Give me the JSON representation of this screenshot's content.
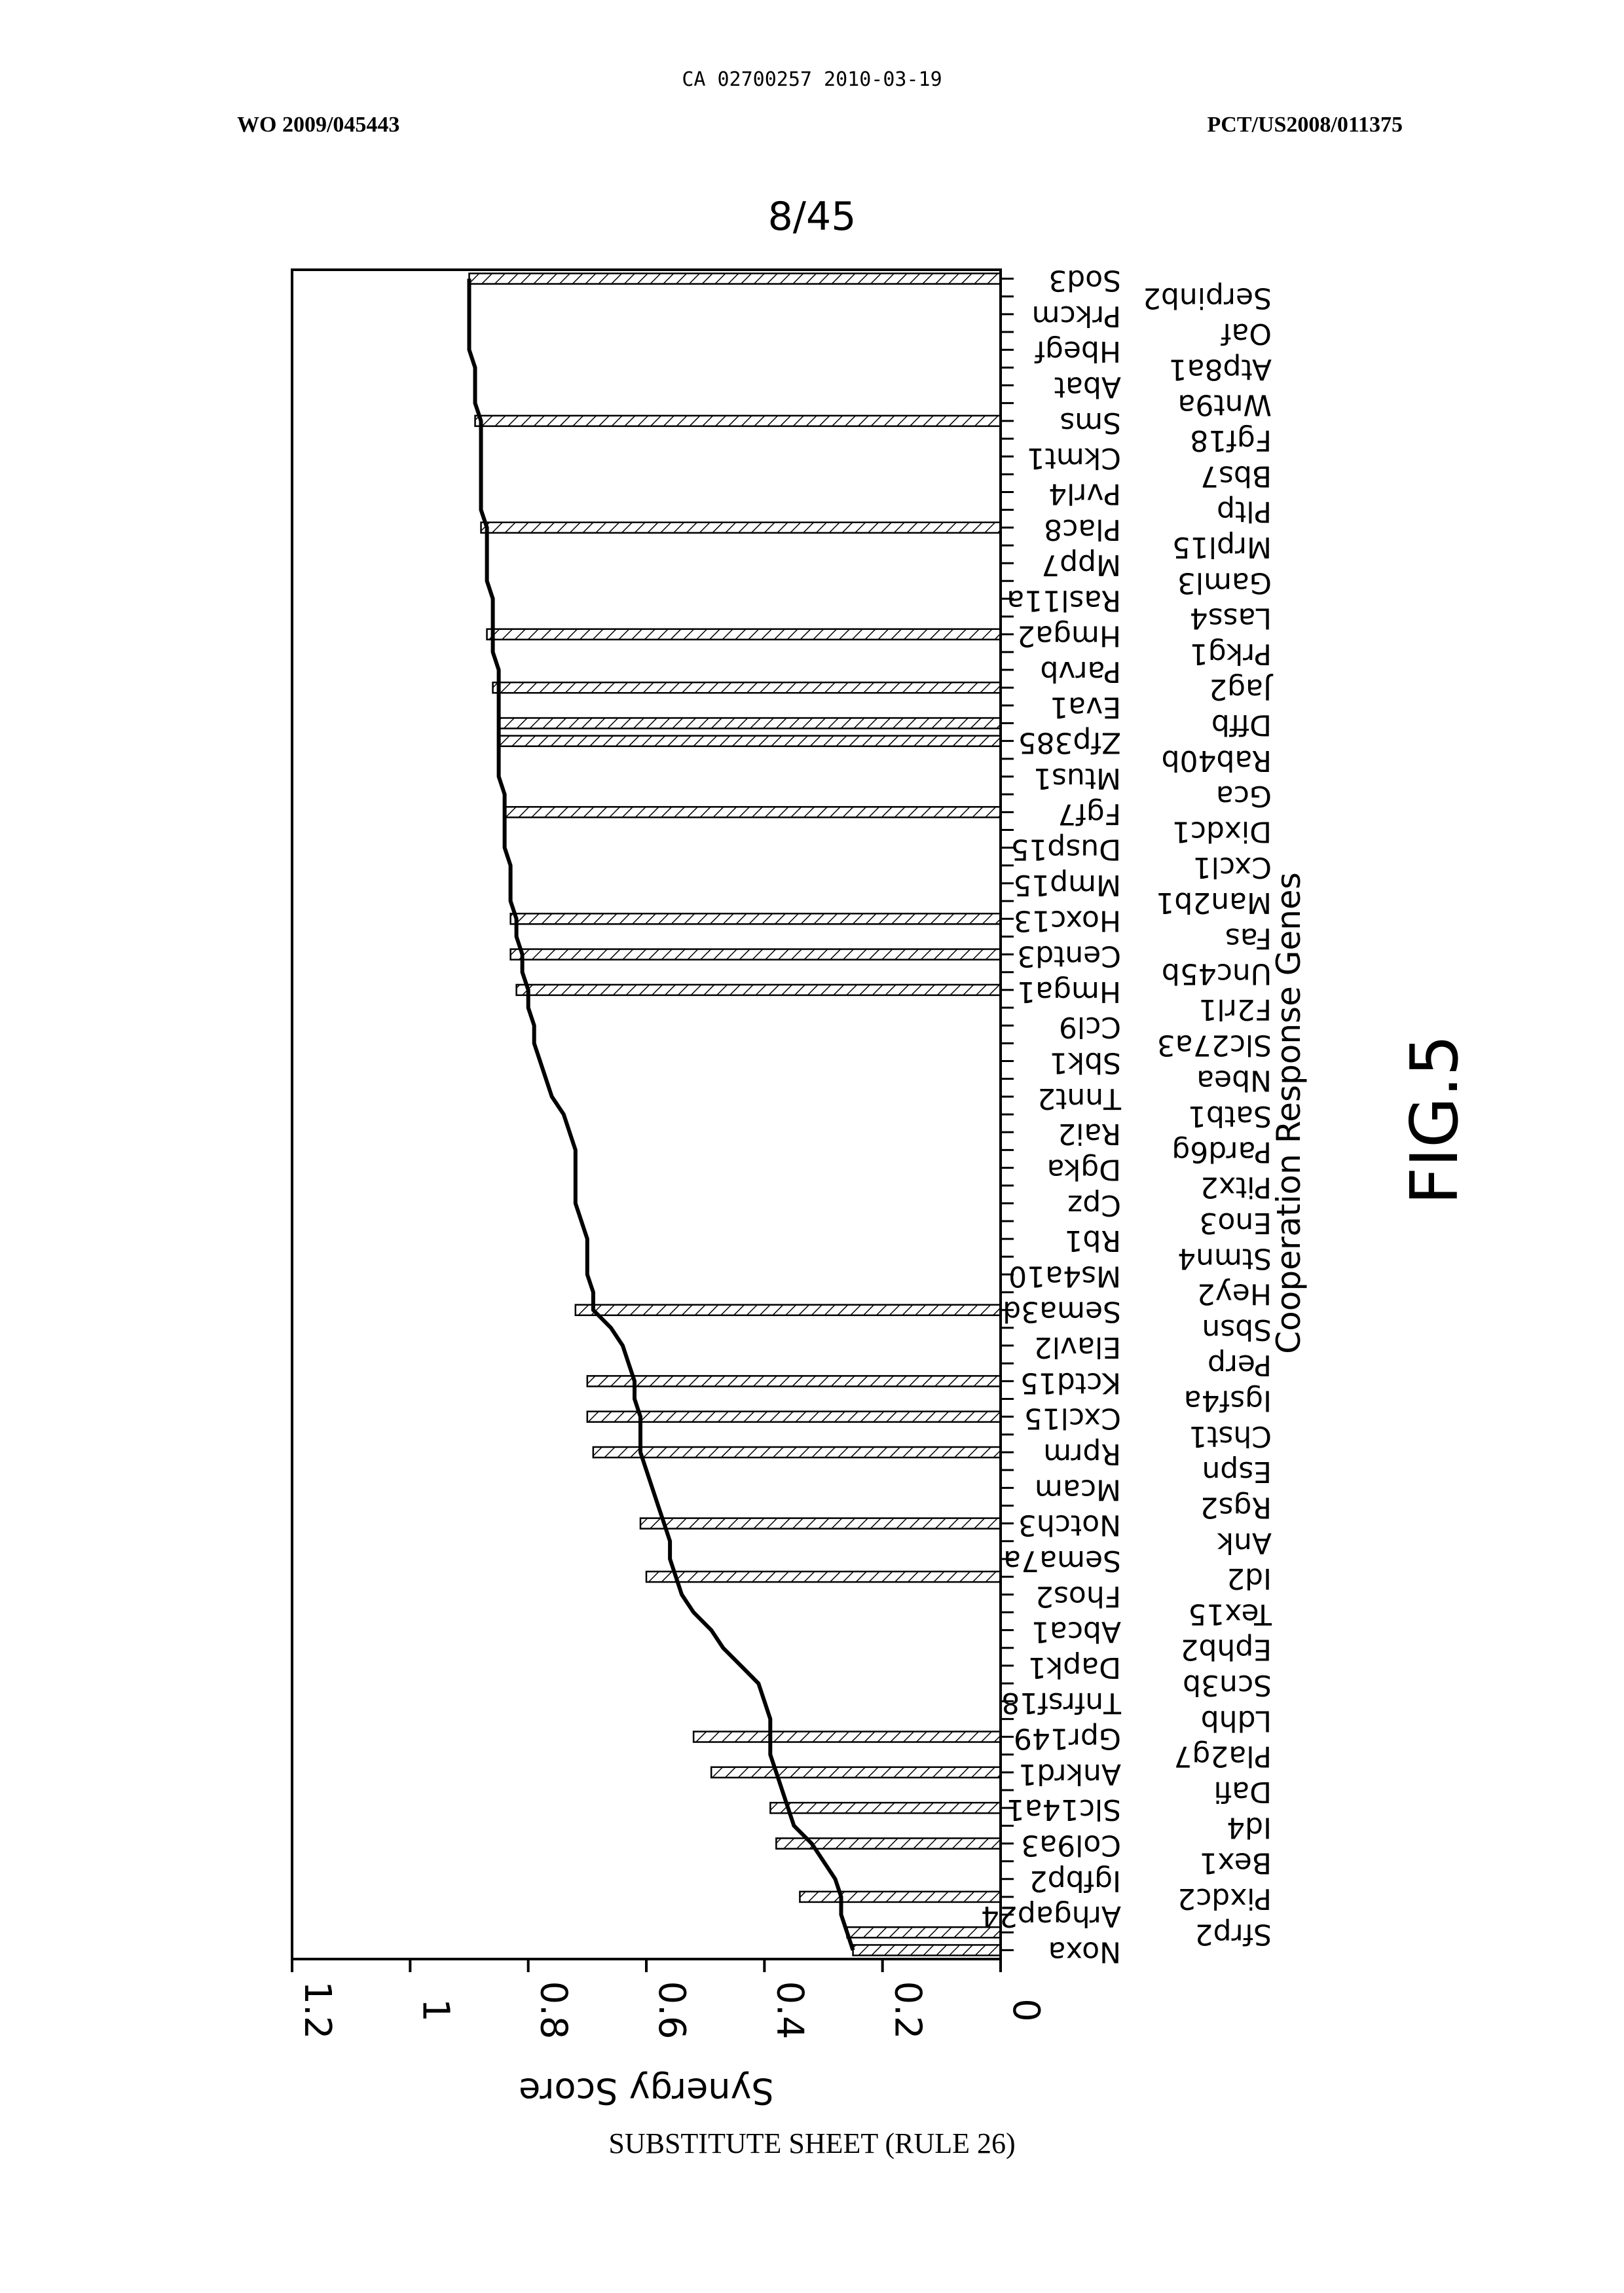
{
  "header": {
    "left": "WO 2009/045443",
    "center": "CA 02700257 2010-03-19",
    "right": "PCT/US2008/011375"
  },
  "sheet_number": "8/45",
  "figure_label": "FIG.5",
  "footer": "SUBSTITUTE SHEET (RULE 26)",
  "chart_data": {
    "type": "line",
    "xlabel": "Cooperation Response Genes",
    "ylabel": "Synergy Score",
    "ylim": [
      0,
      1.2
    ],
    "yticks": [
      0,
      0.2,
      0.4,
      0.6,
      0.8,
      1,
      1.2
    ],
    "orientation": "rotated 90 degrees clockwise; score axis horizontal increasing right-to-left",
    "categories": [
      "Noxa",
      "Sfrp2",
      "Arhgap24",
      "Pixdc2",
      "Igfbp2",
      "Bex1",
      "Col9a3",
      "Id4",
      "Slc14a1",
      "Dafi",
      "Ankrd1",
      "Pla2g7",
      "Gpr149",
      "Ldhb",
      "Tnfrsf18",
      "Scn3b",
      "Dapk1",
      "Ephb2",
      "Abca1",
      "Tex15",
      "Fhos2",
      "Id2",
      "Sema7a",
      "Ank",
      "Notch3",
      "Rgs2",
      "Mcam",
      "Espn",
      "Rprm",
      "Chst1",
      "Cxcl15",
      "Igsf4a",
      "Kctd15",
      "Perp",
      "Elavl2",
      "Sbsn",
      "Sema3d",
      "Hey2",
      "Ms4a10",
      "Stmn4",
      "Rb1",
      "Eno3",
      "Cpz",
      "Pitx2",
      "Dgka",
      "Pard6g",
      "Rai2",
      "Satb1",
      "Tnnt2",
      "Nbea",
      "Sbk1",
      "Slc27a3",
      "Ccl9",
      "F2rl1",
      "Hmga1",
      "Unc45b",
      "Centd3",
      "Fas",
      "Hoxc13",
      "Man2b1",
      "Mmp15",
      "Cxcl1",
      "Dusp15",
      "Dixdc1",
      "Fgf7",
      "Gca",
      "Mtus1",
      "Rab40b",
      "Zfp385",
      "Dffb",
      "Eva1",
      "Jag2",
      "Parvb",
      "Prkg1",
      "Hmga2",
      "Lass4",
      "Rasl11a",
      "Gaml3",
      "Mpp7",
      "Mrpl15",
      "Plac8",
      "Pltp",
      "Pvrl4",
      "Bbs7",
      "Ckmt1",
      "Fgf18",
      "Sms",
      "Wnt9a",
      "Abat",
      "Atp8a1",
      "Hbegf",
      "Oaf",
      "Prkcm",
      "Serpinb2",
      "Sod3"
    ],
    "series": [
      {
        "values": [
          0.25,
          0.26,
          0.27,
          0.27,
          0.28,
          0.3,
          0.32,
          0.35,
          0.36,
          0.37,
          0.38,
          0.39,
          0.39,
          0.39,
          0.4,
          0.41,
          0.44,
          0.47,
          0.49,
          0.52,
          0.54,
          0.55,
          0.56,
          0.56,
          0.57,
          0.58,
          0.59,
          0.6,
          0.61,
          0.61,
          0.61,
          0.62,
          0.62,
          0.63,
          0.64,
          0.66,
          0.69,
          0.69,
          0.7,
          0.7,
          0.7,
          0.71,
          0.72,
          0.72,
          0.72,
          0.72,
          0.73,
          0.74,
          0.76,
          0.77,
          0.78,
          0.79,
          0.79,
          0.8,
          0.8,
          0.81,
          0.81,
          0.82,
          0.82,
          0.83,
          0.83,
          0.83,
          0.84,
          0.84,
          0.84,
          0.84,
          0.85,
          0.85,
          0.85,
          0.85,
          0.85,
          0.85,
          0.85,
          0.86,
          0.86,
          0.86,
          0.86,
          0.87,
          0.87,
          0.87,
          0.87,
          0.88,
          0.88,
          0.88,
          0.88,
          0.88,
          0.88,
          0.89,
          0.89,
          0.89,
          0.9,
          0.9,
          0.9,
          0.9,
          0.9
        ]
      }
    ],
    "highlighted": [
      {
        "gene": "Noxa",
        "value": 0.25
      },
      {
        "gene": "Sfrp2",
        "value": 0.26
      },
      {
        "gene": "Pixdc2",
        "value": 0.34
      },
      {
        "gene": "Col9a3",
        "value": 0.38
      },
      {
        "gene": "Slc14a1",
        "value": 0.39
      },
      {
        "gene": "Ankrd1",
        "value": 0.49
      },
      {
        "gene": "Gpr149",
        "value": 0.52
      },
      {
        "gene": "Id2",
        "value": 0.6
      },
      {
        "gene": "Notch3",
        "value": 0.61
      },
      {
        "gene": "Rprm",
        "value": 0.69
      },
      {
        "gene": "Cxcl15",
        "value": 0.7
      },
      {
        "gene": "Kctd15",
        "value": 0.7
      },
      {
        "gene": "Sema3d",
        "value": 0.72
      },
      {
        "gene": "Hmga1",
        "value": 0.82
      },
      {
        "gene": "Centd3",
        "value": 0.83
      },
      {
        "gene": "Hoxc13",
        "value": 0.83
      },
      {
        "gene": "Fgf7",
        "value": 0.84
      },
      {
        "gene": "Zfp385",
        "value": 0.85
      },
      {
        "gene": "Dffb",
        "value": 0.85
      },
      {
        "gene": "Jag2",
        "value": 0.86
      },
      {
        "gene": "Hmga2",
        "value": 0.87
      },
      {
        "gene": "Plac8",
        "value": 0.88
      },
      {
        "gene": "Sms",
        "value": 0.89
      },
      {
        "gene": "Sod3",
        "value": 0.9
      }
    ]
  }
}
